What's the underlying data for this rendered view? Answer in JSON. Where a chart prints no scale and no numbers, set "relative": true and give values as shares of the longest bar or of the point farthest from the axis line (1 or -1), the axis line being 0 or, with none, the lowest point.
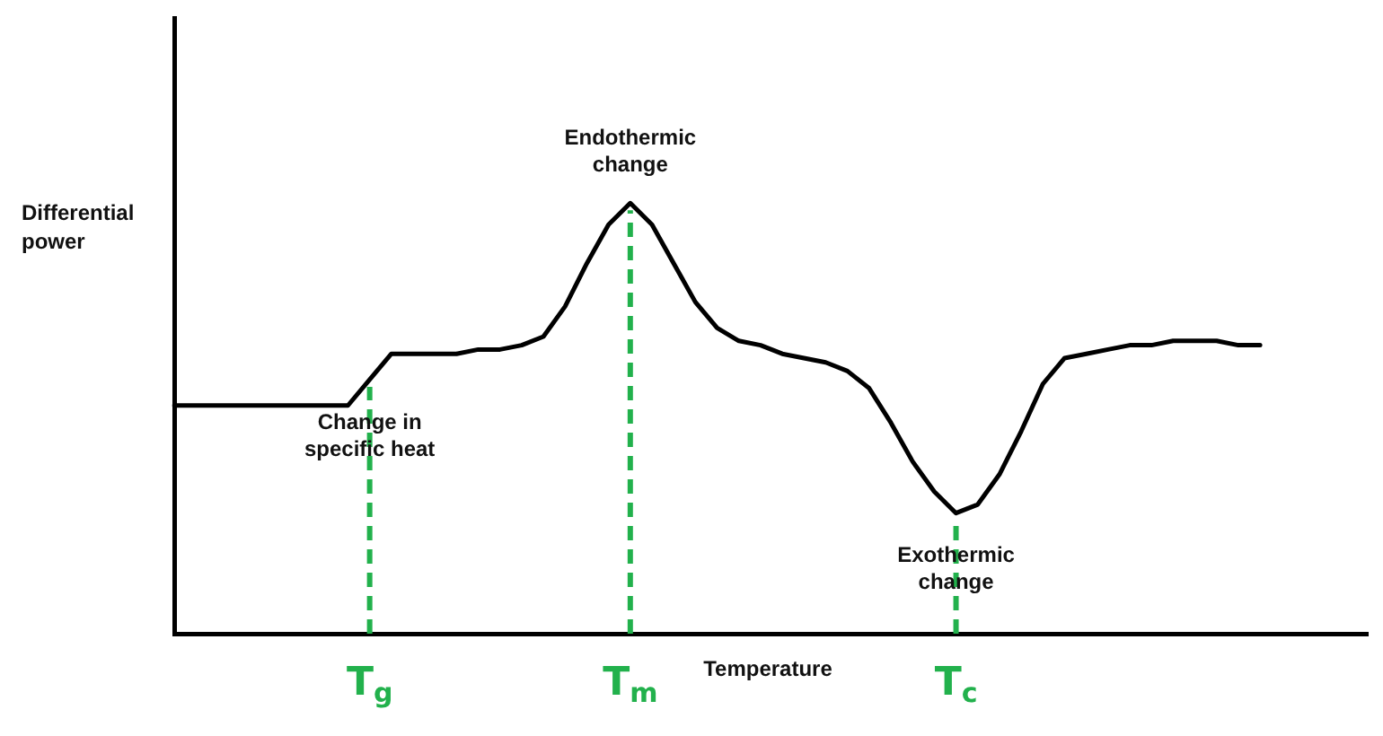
{
  "chart_data": {
    "type": "line",
    "relative": true,
    "xlabel": "Temperature",
    "ylabel": "Differential power",
    "grid": false,
    "legend": false,
    "marker": "none",
    "line_style": "solid",
    "categories": [
      null,
      null,
      null,
      null,
      null,
      null,
      null,
      null,
      null,
      "T$_{g}$",
      null,
      null,
      null,
      null,
      null,
      null,
      null,
      null,
      null,
      null,
      null,
      "T$_{m}$",
      null,
      null,
      null,
      null,
      null,
      null,
      null,
      null,
      null,
      null,
      null,
      null,
      null,
      null,
      "T$_{c}$",
      null,
      null,
      null,
      null,
      null,
      null,
      null,
      null,
      null,
      null,
      null,
      null,
      null,
      null,
      null,
      null,
      null,
      null,
      null
    ],
    "series": [
      {
        "color": "#000000",
        "values": [
          0.53,
          0.53,
          0.53,
          0.53,
          0.53,
          0.53,
          0.53,
          0.53,
          0.53,
          0.59,
          0.65,
          0.65,
          0.65,
          0.65,
          0.66,
          0.66,
          0.67,
          0.69,
          0.76,
          0.86,
          0.95,
          1.0,
          0.95,
          0.86,
          0.77,
          0.71,
          0.68,
          0.67,
          0.65,
          0.64,
          0.63,
          0.61,
          0.57,
          0.49,
          0.4,
          0.33,
          0.28,
          0.3,
          0.37,
          0.47,
          0.58,
          0.64,
          0.65,
          0.66,
          0.67,
          0.67,
          0.68,
          0.68,
          0.68,
          0.67,
          0.67,
          null,
          null,
          null,
          null,
          null
        ]
      }
    ],
    "ref_lines": [
      {
        "axis": "x",
        "value": "T$_{g}$",
        "color": "#22b14c",
        "line_style": "dashed"
      },
      {
        "axis": "x",
        "value": "T$_{m}$",
        "color": "#22b14c",
        "line_style": "dashed"
      },
      {
        "axis": "x",
        "value": "T$_{c}$",
        "color": "#22b14c",
        "line_style": "dashed"
      }
    ],
    "annotations": [
      {
        "text": "Endothermic change",
        "x": "T$_{m}$",
        "y": 1.0
      },
      {
        "text": "Change in specific heat",
        "x": "T$_{g}$",
        "y": 0.59
      },
      {
        "text": "Exothermic change",
        "x": "T$_{c}$",
        "y": 0.28
      }
    ]
  }
}
